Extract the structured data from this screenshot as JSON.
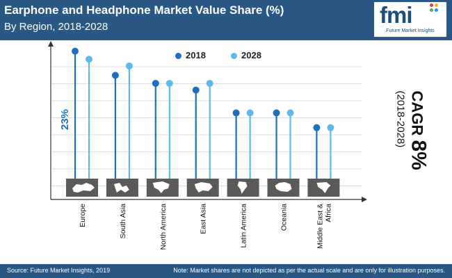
{
  "header": {
    "title": "Earphone and Headphone Market Value Share (%)",
    "subtitle": "By Region, 2018-2028"
  },
  "logo": {
    "text": "fmi",
    "tagline": "Future Market Insights"
  },
  "legend": {
    "series_2018": "2018",
    "series_2028": "2028"
  },
  "colors": {
    "header_bg": "#2a5784",
    "series_2018": "#1f6fbf",
    "series_2028": "#5bbbec",
    "map_tile": "#5a5a5a"
  },
  "annotation": {
    "label": "23%"
  },
  "cagr": {
    "label": "CAGR",
    "value": "8%",
    "period": "(2018-2028)"
  },
  "footer": {
    "source": "Source: Future Market Insights, 2019",
    "note": "Note: Market shares are not depicted as per the actual scale and are only for illustration purposes."
  },
  "chart_data": {
    "type": "lollipop",
    "title": "Earphone and Headphone Market Value Share (%)",
    "subtitle": "By Region, 2018-2028",
    "xlabel": "",
    "ylabel": "",
    "ylim": [
      0,
      100
    ],
    "grid": true,
    "legend_position": "top-center",
    "categories": [
      "Europe",
      "South Asia",
      "North America",
      "East Asia",
      "Latin America",
      "Oceania",
      "Middle East & Africa"
    ],
    "series": [
      {
        "name": "2018",
        "values": [
          95,
          77,
          71,
          66,
          49,
          49,
          38
        ]
      },
      {
        "name": "2028",
        "values": [
          89,
          84,
          71,
          71,
          49,
          49,
          38
        ]
      }
    ],
    "annotations": [
      {
        "category": "Europe",
        "series": "2018",
        "text": "23%"
      }
    ]
  }
}
